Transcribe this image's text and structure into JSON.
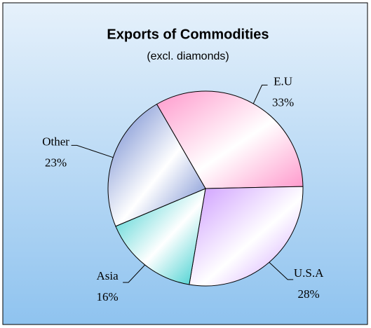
{
  "chart_data": {
    "type": "pie",
    "title": "Exports of Commodities",
    "subtitle": "(excl. diamonds)",
    "categories": [
      "E.U",
      "U.S.A",
      "Asia",
      "Other"
    ],
    "values": [
      33,
      28,
      16,
      23
    ],
    "value_labels": [
      "33%",
      "28%",
      "16%",
      "23%"
    ],
    "colors": [
      "#ff99cc",
      "#cc99ff",
      "#33cccc",
      "#6680cc"
    ]
  }
}
